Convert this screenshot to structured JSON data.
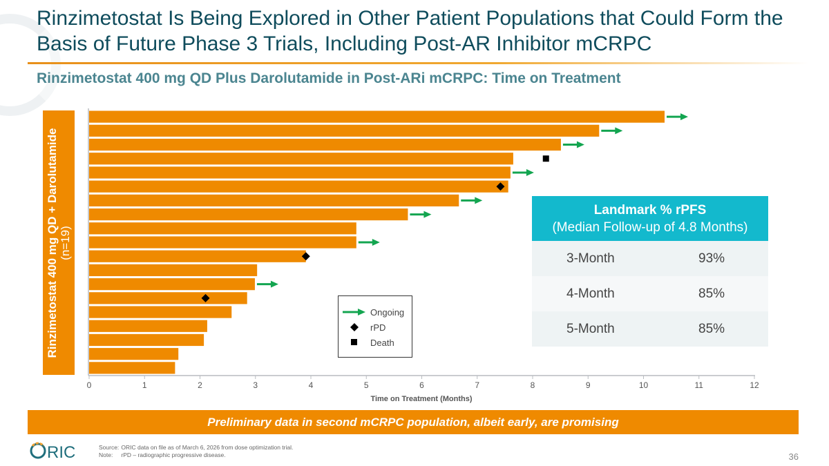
{
  "header": {
    "title": "Rinzimetostat Is Being Explored in Other Patient Populations that Could Form the Basis of Future Phase 3 Trials, Including Post-AR Inhibitor mCRPC",
    "subtitle": "Rinzimetostat 400 mg QD Plus Darolutamide in Post-ARi mCRPC: Time on Treatment"
  },
  "colors": {
    "bar": "#ef8a00",
    "ongoing_arrow": "#13a550",
    "marker": "#000000",
    "title": "#0f4c5c",
    "subtitle": "#4b8590",
    "table_header": "#13b9cd"
  },
  "chart_data": {
    "type": "bar",
    "orientation": "horizontal",
    "title": "Time on Treatment",
    "xlabel": "Time on Treatment (Months)",
    "ylabel_line1": "Rinzimetostat 400 mg QD + Darolutamide",
    "ylabel_line2": "(n=19)",
    "xlim": [
      0,
      12
    ],
    "xticks": [
      "0",
      "1",
      "2",
      "3",
      "4",
      "5",
      "6",
      "7",
      "8",
      "9",
      "10",
      "11",
      "12"
    ],
    "grid": false,
    "patients": [
      {
        "value": 10.38,
        "ongoing": true,
        "rpd": null,
        "death": null
      },
      {
        "value": 9.2,
        "ongoing": true,
        "rpd": null,
        "death": null
      },
      {
        "value": 8.51,
        "ongoing": true,
        "rpd": null,
        "death": null
      },
      {
        "value": 7.65,
        "ongoing": false,
        "rpd": null,
        "death": 8.24
      },
      {
        "value": 7.6,
        "ongoing": true,
        "rpd": null,
        "death": null
      },
      {
        "value": 7.56,
        "ongoing": false,
        "rpd": 7.42,
        "death": null
      },
      {
        "value": 6.67,
        "ongoing": true,
        "rpd": null,
        "death": null
      },
      {
        "value": 5.75,
        "ongoing": true,
        "rpd": null,
        "death": null
      },
      {
        "value": 4.82,
        "ongoing": false,
        "rpd": null,
        "death": null
      },
      {
        "value": 4.82,
        "ongoing": true,
        "rpd": null,
        "death": null
      },
      {
        "value": 3.91,
        "ongoing": false,
        "rpd": 3.91,
        "death": null
      },
      {
        "value": 3.03,
        "ongoing": false,
        "rpd": null,
        "death": null
      },
      {
        "value": 2.99,
        "ongoing": true,
        "rpd": null,
        "death": null
      },
      {
        "value": 2.85,
        "ongoing": false,
        "rpd": 2.1,
        "death": null
      },
      {
        "value": 2.57,
        "ongoing": false,
        "rpd": null,
        "death": null
      },
      {
        "value": 2.13,
        "ongoing": false,
        "rpd": null,
        "death": null
      },
      {
        "value": 2.07,
        "ongoing": false,
        "rpd": null,
        "death": null
      },
      {
        "value": 1.61,
        "ongoing": false,
        "rpd": null,
        "death": null
      },
      {
        "value": 1.55,
        "ongoing": false,
        "rpd": null,
        "death": null
      }
    ],
    "legend": {
      "placement": "center-bottom",
      "items": [
        {
          "symbol": "arrow-right-icon",
          "label": "Ongoing"
        },
        {
          "symbol": "diamond-icon",
          "label": "rPD"
        },
        {
          "symbol": "square-icon",
          "label": "Death"
        }
      ]
    }
  },
  "rpfs_table": {
    "header_line1": "Landmark % rPFS",
    "header_line2": "(Median Follow-up of 4.8 Months)",
    "rows": [
      {
        "landmark": "3-Month",
        "value": "93%"
      },
      {
        "landmark": "4-Month",
        "value": "85%"
      },
      {
        "landmark": "5-Month",
        "value": "85%"
      }
    ]
  },
  "banner": "Preliminary data in second mCRPC population, albeit early, are promising",
  "footer": {
    "logo_text": "ORIC",
    "source_label": "Source:",
    "source_text": "ORIC data on file as of March 6, 2026 from dose optimization trial.",
    "note_label": "Note:",
    "note_text": "rPD – radiographic progressive disease.",
    "page_number": "36"
  }
}
